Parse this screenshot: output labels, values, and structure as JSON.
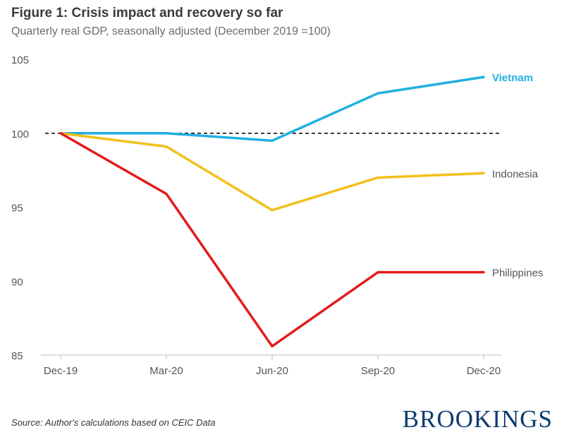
{
  "title": "Figure 1: Crisis impact and recovery so far",
  "subtitle": "Quarterly real GDP, seasonally adjusted (December 2019 =100)",
  "source": "Source: Author's calculations based on CEIC Data",
  "brand": "BROOKINGS",
  "colors": {
    "vietnam": "#1fb0df",
    "indonesia": "#f2c01a",
    "philippines": "#e31b1b",
    "reference": "#000000",
    "axis": "#bbbbbb",
    "brand": "#0b3b70"
  },
  "chart_data": {
    "type": "line",
    "categories": [
      "Dec-19",
      "Mar-20",
      "Jun-20",
      "Sep-20",
      "Dec-20"
    ],
    "ylim": [
      85,
      105
    ],
    "yticks": [
      85,
      90,
      95,
      100,
      105
    ],
    "reference_line": 100,
    "series": [
      {
        "name": "Vietnam",
        "values": [
          100,
          100,
          99.5,
          102.7,
          103.8
        ],
        "color": "#1fb0df",
        "bold": true
      },
      {
        "name": "Indonesia",
        "values": [
          100,
          99.1,
          94.8,
          97.0,
          97.3
        ],
        "color": "#f2c01a",
        "bold": false
      },
      {
        "name": "Philippines",
        "values": [
          100,
          95.9,
          85.6,
          90.6,
          90.6
        ],
        "color": "#e31b1b",
        "bold": false
      }
    ],
    "grid": false,
    "legend": "inline labels at line ends"
  }
}
